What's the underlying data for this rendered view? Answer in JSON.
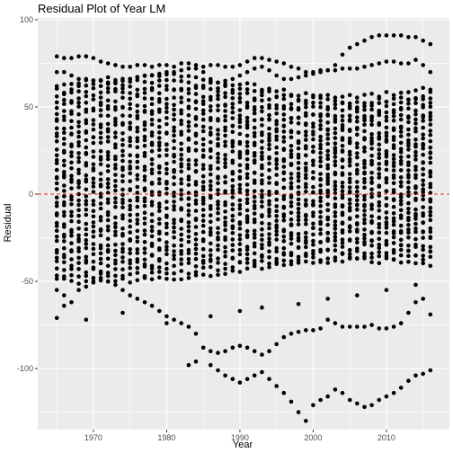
{
  "chart_data": {
    "type": "scatter",
    "title": "Residual Plot of Year LM",
    "xlabel": "Year",
    "ylabel": "Residual",
    "xlim": [
      1962.4,
      2018.6
    ],
    "ylim": [
      -135,
      101
    ],
    "xticks": [
      1970,
      1980,
      1990,
      2000,
      2010
    ],
    "yticks": [
      -100,
      -50,
      0,
      50,
      100
    ],
    "x_tick_labels": [
      "1970",
      "1980",
      "1990",
      "2000",
      "2010"
    ],
    "y_tick_labels": [
      "-100",
      "-50",
      "0",
      "50",
      "100"
    ],
    "panel_background": "#ebebeb",
    "grid_color": "#ffffff",
    "point_color": "#000000",
    "reference_line": {
      "y": 0,
      "color": "#e41a1c",
      "style": "dashed"
    },
    "x_range": [
      1965,
      2016
    ],
    "series": [
      {
        "values_note_free": true,
        "points": [
          [
            1965,
            79
          ],
          [
            1966,
            78
          ],
          [
            1967,
            78
          ],
          [
            1968,
            79
          ],
          [
            1969,
            79
          ],
          [
            1970,
            78
          ],
          [
            1971,
            76
          ],
          [
            1972,
            75
          ],
          [
            1973,
            74
          ],
          [
            1974,
            73
          ],
          [
            1975,
            73
          ],
          [
            1976,
            74
          ],
          [
            1977,
            74
          ],
          [
            1978,
            73
          ],
          [
            1979,
            74
          ],
          [
            1980,
            74
          ],
          [
            1981,
            73
          ],
          [
            1982,
            75
          ],
          [
            1983,
            75
          ],
          [
            1984,
            74
          ],
          [
            1985,
            73
          ],
          [
            1986,
            74
          ],
          [
            1987,
            74
          ],
          [
            1988,
            73
          ],
          [
            1989,
            73
          ],
          [
            1990,
            74
          ],
          [
            1991,
            76
          ],
          [
            1992,
            78
          ],
          [
            1993,
            78
          ],
          [
            1994,
            77
          ],
          [
            1995,
            76
          ],
          [
            1996,
            75
          ],
          [
            1997,
            73
          ],
          [
            1998,
            72
          ],
          [
            1999,
            70
          ],
          [
            2000,
            70
          ],
          [
            2001,
            71
          ],
          [
            2002,
            71
          ],
          [
            2003,
            74
          ],
          [
            2004,
            80
          ],
          [
            2005,
            84
          ],
          [
            2006,
            86
          ],
          [
            2007,
            88
          ],
          [
            2008,
            90
          ],
          [
            2009,
            91
          ],
          [
            2010,
            91
          ],
          [
            2011,
            91
          ],
          [
            2012,
            91
          ],
          [
            2013,
            90
          ],
          [
            2014,
            90
          ],
          [
            2015,
            88
          ],
          [
            2016,
            86
          ],
          [
            1965,
            70
          ],
          [
            1966,
            70
          ],
          [
            1967,
            68
          ],
          [
            1968,
            66
          ],
          [
            1969,
            66
          ],
          [
            1970,
            65
          ],
          [
            1971,
            65
          ],
          [
            1972,
            64
          ],
          [
            1973,
            64
          ],
          [
            1974,
            65
          ],
          [
            1975,
            66
          ],
          [
            1976,
            67
          ],
          [
            1977,
            68
          ],
          [
            1978,
            68
          ],
          [
            1979,
            69
          ],
          [
            1980,
            70
          ],
          [
            1981,
            70
          ],
          [
            1982,
            71
          ],
          [
            1983,
            72
          ],
          [
            1984,
            72
          ],
          [
            1985,
            70
          ],
          [
            1986,
            66
          ],
          [
            1987,
            64
          ],
          [
            1988,
            65
          ],
          [
            1989,
            66
          ],
          [
            1990,
            68
          ],
          [
            1991,
            70
          ],
          [
            1992,
            72
          ],
          [
            1993,
            73
          ],
          [
            1994,
            71
          ],
          [
            1995,
            68
          ],
          [
            1996,
            66
          ],
          [
            1997,
            66
          ],
          [
            1998,
            67
          ],
          [
            1999,
            68
          ],
          [
            2000,
            69
          ],
          [
            2001,
            70
          ],
          [
            2002,
            71
          ],
          [
            2003,
            71
          ],
          [
            2004,
            72
          ],
          [
            2005,
            72
          ],
          [
            2006,
            72
          ],
          [
            2007,
            73
          ],
          [
            2008,
            74
          ],
          [
            2009,
            75
          ],
          [
            2010,
            76
          ],
          [
            2011,
            76
          ],
          [
            2012,
            75
          ],
          [
            2013,
            75
          ],
          [
            2014,
            77
          ],
          [
            2015,
            74
          ],
          [
            2016,
            70
          ],
          [
            1965,
            -55
          ],
          [
            1966,
            -58
          ],
          [
            1967,
            -62
          ],
          [
            1968,
            -55
          ],
          [
            1969,
            -53
          ],
          [
            1970,
            -50
          ],
          [
            1971,
            -48
          ],
          [
            1972,
            -50
          ],
          [
            1973,
            -52
          ],
          [
            1974,
            -55
          ],
          [
            1975,
            -58
          ],
          [
            1976,
            -60
          ],
          [
            1977,
            -62
          ],
          [
            1978,
            -64
          ],
          [
            1979,
            -67
          ],
          [
            1980,
            -70
          ],
          [
            1981,
            -72
          ],
          [
            1982,
            -74
          ],
          [
            1983,
            -76
          ],
          [
            1984,
            -80
          ],
          [
            1985,
            -88
          ],
          [
            1986,
            -90
          ],
          [
            1987,
            -91
          ],
          [
            1988,
            -90
          ],
          [
            1989,
            -88
          ],
          [
            1990,
            -87
          ],
          [
            1991,
            -88
          ],
          [
            1992,
            -90
          ],
          [
            1993,
            -92
          ],
          [
            1994,
            -90
          ],
          [
            1995,
            -86
          ],
          [
            1996,
            -82
          ],
          [
            1997,
            -80
          ],
          [
            1998,
            -79
          ],
          [
            1999,
            -78
          ],
          [
            2000,
            -78
          ],
          [
            2001,
            -77
          ],
          [
            2002,
            -72
          ],
          [
            2003,
            -74
          ],
          [
            2004,
            -76
          ],
          [
            2005,
            -76
          ],
          [
            2006,
            -76
          ],
          [
            2007,
            -76
          ],
          [
            2008,
            -75
          ],
          [
            2009,
            -77
          ],
          [
            2010,
            -77
          ],
          [
            2011,
            -76
          ],
          [
            2012,
            -74
          ],
          [
            2013,
            -68
          ],
          [
            2014,
            -62
          ],
          [
            2015,
            -60
          ],
          [
            2016,
            -69
          ],
          [
            1983,
            -98
          ],
          [
            1984,
            -96
          ],
          [
            1986,
            -98
          ],
          [
            1987,
            -101
          ],
          [
            1988,
            -104
          ],
          [
            1989,
            -106
          ],
          [
            1990,
            -108
          ],
          [
            1991,
            -106
          ],
          [
            1992,
            -104
          ],
          [
            1993,
            -102
          ],
          [
            1994,
            -106
          ],
          [
            1995,
            -110
          ],
          [
            1996,
            -114
          ],
          [
            1997,
            -119
          ],
          [
            1998,
            -125
          ],
          [
            1999,
            -130
          ],
          [
            2000,
            -121
          ],
          [
            2001,
            -118
          ],
          [
            2002,
            -116
          ],
          [
            2003,
            -112
          ],
          [
            2004,
            -114
          ],
          [
            2005,
            -118
          ],
          [
            2006,
            -120
          ],
          [
            2007,
            -122
          ],
          [
            2008,
            -121
          ],
          [
            2009,
            -118
          ],
          [
            2010,
            -116
          ],
          [
            2011,
            -114
          ],
          [
            2012,
            -111
          ],
          [
            2013,
            -107
          ],
          [
            2014,
            -104
          ],
          [
            2015,
            -103
          ],
          [
            2016,
            -101
          ],
          [
            1965,
            -71
          ],
          [
            1966,
            -64
          ],
          [
            1969,
            -72
          ],
          [
            1974,
            -68
          ],
          [
            1980,
            -74
          ],
          [
            1986,
            -70
          ],
          [
            1990,
            -67
          ],
          [
            1993,
            -65
          ],
          [
            1998,
            -63
          ],
          [
            2002,
            -60
          ],
          [
            2006,
            -58
          ],
          [
            2010,
            -55
          ],
          [
            2014,
            -52
          ]
        ]
      }
    ]
  }
}
